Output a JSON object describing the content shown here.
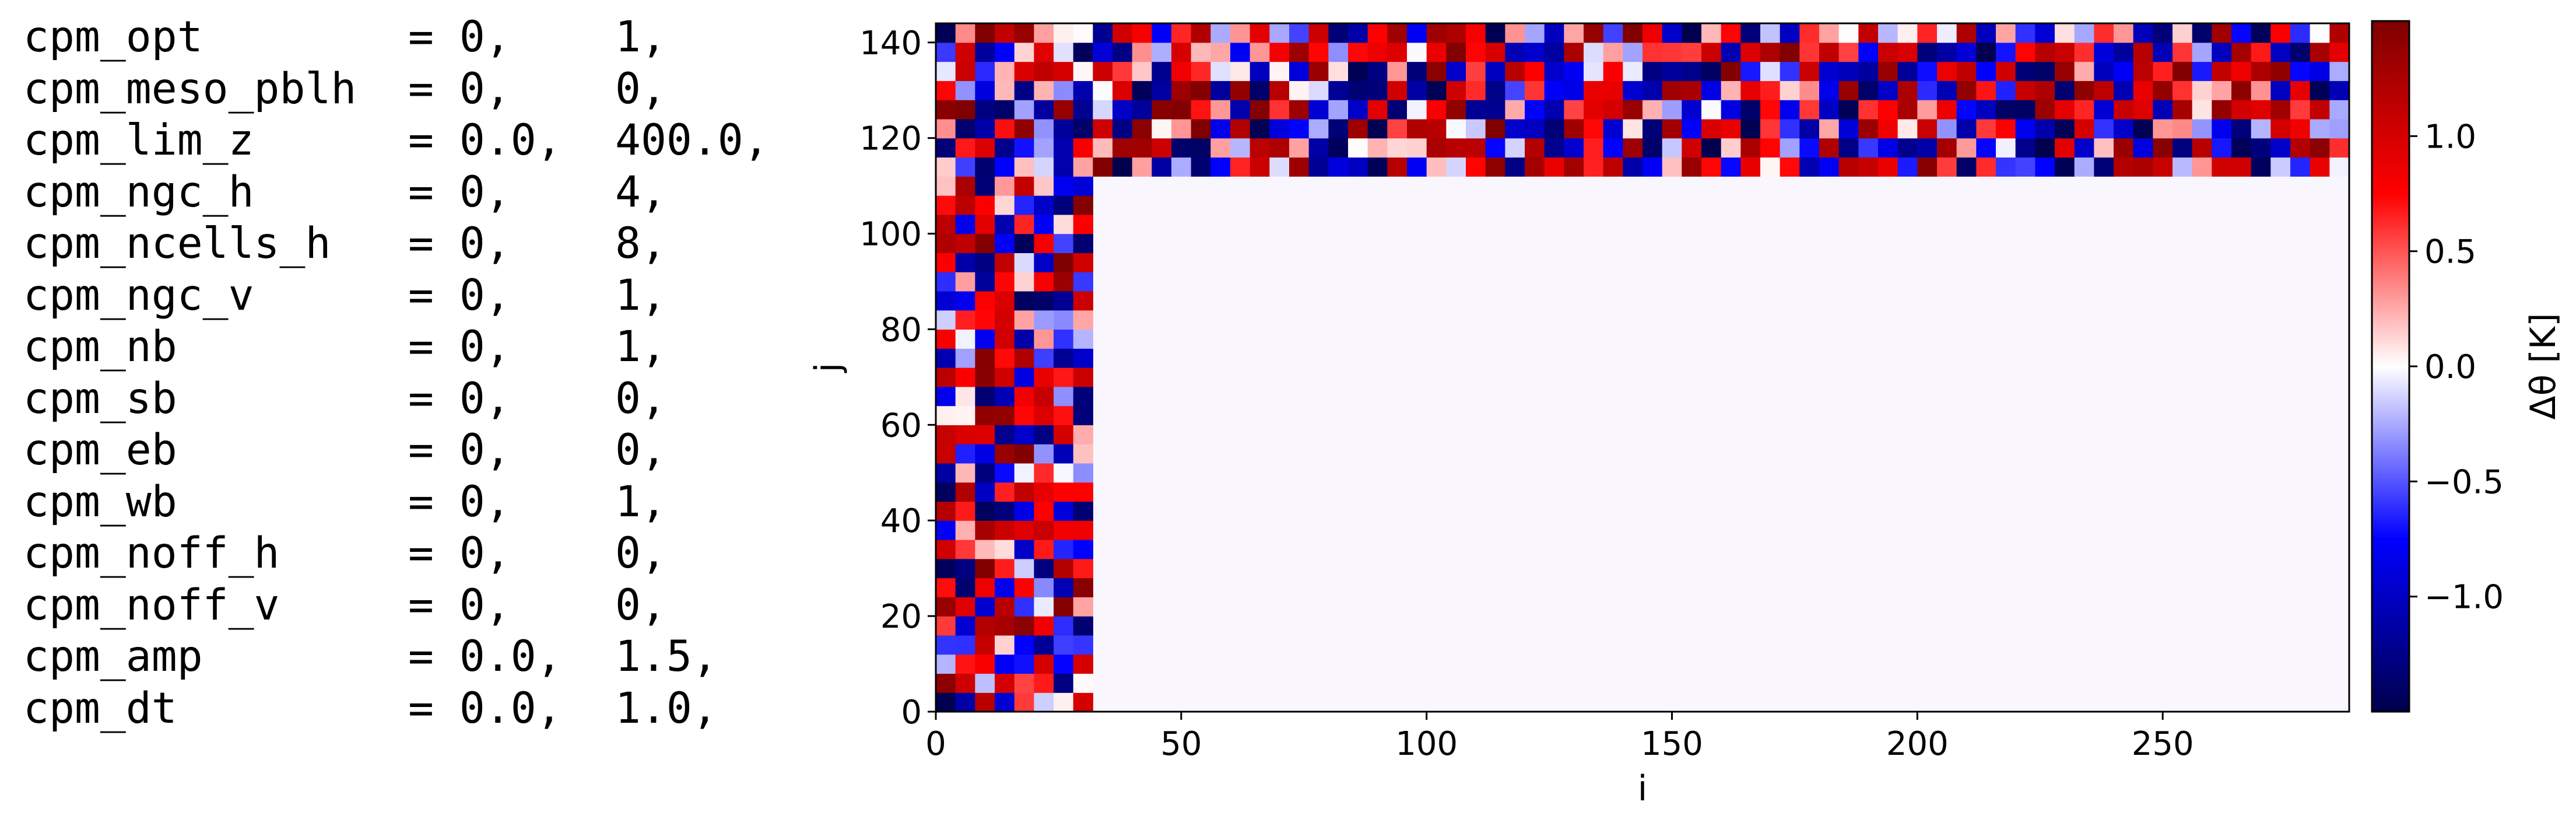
{
  "namelist": [
    {
      "name": "cpm_opt",
      "v1": "= 0,",
      "v2": "1,"
    },
    {
      "name": "cpm_meso_pblh",
      "v1": "= 0,",
      "v2": "0,"
    },
    {
      "name": "cpm_lim_z",
      "v1": "= 0.0,",
      "v2": "400.0,"
    },
    {
      "name": "cpm_ngc_h",
      "v1": "= 0,",
      "v2": "4,"
    },
    {
      "name": "cpm_ncells_h",
      "v1": "= 0,",
      "v2": "8,"
    },
    {
      "name": "cpm_ngc_v",
      "v1": "= 0,",
      "v2": "1,"
    },
    {
      "name": "cpm_nb",
      "v1": "= 0,",
      "v2": "1,"
    },
    {
      "name": "cpm_sb",
      "v1": "= 0,",
      "v2": "0,"
    },
    {
      "name": "cpm_eb",
      "v1": "= 0,",
      "v2": "0,"
    },
    {
      "name": "cpm_wb",
      "v1": "= 0,",
      "v2": "1,"
    },
    {
      "name": "cpm_noff_h",
      "v1": "= 0,",
      "v2": "0,"
    },
    {
      "name": "cpm_noff_v",
      "v1": "= 0,",
      "v2": "0,"
    },
    {
      "name": "cpm_amp",
      "v1": "= 0.0,",
      "v2": "1.5,"
    },
    {
      "name": "cpm_dt",
      "v1": "= 0.0,",
      "v2": "1.0,"
    }
  ],
  "chart_data": {
    "type": "heatmap",
    "title": "",
    "xlabel": "i",
    "ylabel": "j",
    "xlim": [
      0,
      288
    ],
    "ylim": [
      0,
      144
    ],
    "xticks": [
      0,
      50,
      100,
      150,
      200,
      250
    ],
    "yticks": [
      0,
      20,
      40,
      60,
      80,
      100,
      120,
      140
    ],
    "cell_size": 4,
    "perturbed_regions": [
      {
        "name": "west boundary",
        "i_range": [
          0,
          32
        ],
        "j_range": [
          0,
          112
        ]
      },
      {
        "name": "north boundary",
        "i_range": [
          0,
          288
        ],
        "j_range": [
          112,
          144
        ]
      }
    ],
    "interior_value": 0.0,
    "value_range": [
      -1.5,
      1.5
    ],
    "colormap": "seismic",
    "colormap_stops": [
      "#00004c",
      "#0000ff",
      "#ffffff",
      "#ff0000",
      "#7f0000"
    ],
    "colorbar": {
      "label": "Δθ [K]",
      "ticks": [
        {
          "value": 1.0,
          "label": "1.0"
        },
        {
          "value": 0.5,
          "label": "0.5"
        },
        {
          "value": 0.0,
          "label": "0.0"
        },
        {
          "value": -0.5,
          "label": "−0.5"
        },
        {
          "value": -1.0,
          "label": "−1.0"
        }
      ]
    }
  }
}
